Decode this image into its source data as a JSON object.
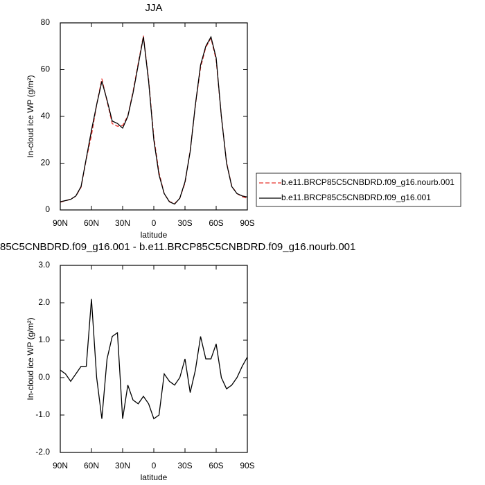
{
  "chart_data": [
    {
      "type": "line",
      "title": "JJA",
      "xlabel": "latitude",
      "ylabel": "In-cloud ice WP (g/m²)",
      "x": [
        90,
        85,
        80,
        75,
        70,
        65,
        60,
        55,
        50,
        45,
        40,
        35,
        30,
        25,
        20,
        15,
        10,
        5,
        0,
        -5,
        -10,
        -15,
        -20,
        -25,
        -30,
        -35,
        -40,
        -45,
        -50,
        -55,
        -60,
        -65,
        -70,
        -75,
        -80,
        -85,
        -90
      ],
      "series": [
        {
          "name": "b.e11.BRCP85C5CNBDRD.f09_g16.nourb.001",
          "color": "#e8302a",
          "dash": "dashed",
          "values": [
            3.3,
            3.9,
            4.6,
            5.9,
            9.7,
            21.7,
            31.9,
            45,
            56.1,
            46.5,
            36.9,
            35.8,
            36.1,
            40.2,
            50.6,
            62.7,
            74.5,
            55.7,
            31.1,
            16,
            6.9,
            3.6,
            2.7,
            5,
            11.5,
            25.4,
            44.8,
            60.9,
            69.5,
            73.5,
            64.1,
            40,
            20.3,
            10.2,
            7,
            5.7,
            4.95
          ]
        },
        {
          "name": "b.e11.BRCP85C5CNBDRD.f09_g16.001",
          "color": "#000000",
          "dash": "solid",
          "values": [
            3.5,
            4,
            4.5,
            6,
            10,
            22,
            34,
            45,
            55,
            47,
            38,
            37,
            35,
            40,
            50,
            62,
            74,
            55,
            30,
            15,
            7,
            3.5,
            2.5,
            5,
            12,
            25,
            45,
            62,
            70,
            74,
            65,
            40,
            20,
            10,
            7,
            6,
            5.5
          ]
        }
      ],
      "xlim": [
        90,
        -90
      ],
      "ylim": [
        0,
        80
      ],
      "xticks": [
        {
          "value": 90,
          "label": "90N"
        },
        {
          "value": 60,
          "label": "60N"
        },
        {
          "value": 30,
          "label": "30N"
        },
        0,
        {
          "value": -30,
          "label": "30S"
        },
        {
          "value": -60,
          "label": "60S"
        },
        {
          "value": -90,
          "label": "90S"
        }
      ],
      "yticks": [
        0,
        20,
        40,
        60,
        80
      ],
      "legend": "right"
    },
    {
      "type": "line",
      "title": "85C5CNBDRD.f09_g16.001 - b.e11.BRCP85C5CNBDRD.f09_g16.nourb.001",
      "xlabel": "latitude",
      "ylabel": "In-cloud ice WP (g/m²)",
      "x": [
        90,
        85,
        80,
        75,
        70,
        65,
        60,
        55,
        50,
        45,
        40,
        35,
        30,
        25,
        20,
        15,
        10,
        5,
        0,
        -5,
        -10,
        -15,
        -20,
        -25,
        -30,
        -35,
        -40,
        -45,
        -50,
        -55,
        -60,
        -65,
        -70,
        -75,
        -80,
        -85,
        -90
      ],
      "series": [
        {
          "color": "#000000",
          "dash": "solid",
          "values": [
            0.2,
            0.1,
            -0.1,
            0.1,
            0.3,
            0.3,
            2.1,
            0,
            -1.1,
            0.5,
            1.1,
            1.2,
            -1.1,
            -0.2,
            -0.6,
            -0.7,
            -0.5,
            -0.7,
            -1.1,
            -1,
            0.1,
            -0.1,
            -0.2,
            0,
            0.5,
            -0.4,
            0.2,
            1.1,
            0.5,
            0.5,
            0.9,
            0,
            -0.3,
            -0.2,
            0,
            0.3,
            0.55
          ]
        }
      ],
      "xlim": [
        90,
        -90
      ],
      "ylim": [
        -2,
        3
      ],
      "xticks": [
        {
          "value": 90,
          "label": "90N"
        },
        {
          "value": 60,
          "label": "60N"
        },
        {
          "value": 30,
          "label": "30N"
        },
        0,
        {
          "value": -30,
          "label": "30S"
        },
        {
          "value": -60,
          "label": "60S"
        },
        {
          "value": -90,
          "label": "90S"
        }
      ],
      "yticks": [
        {
          "value": -2,
          "label": "-2.0"
        },
        {
          "value": -1,
          "label": "-1.0"
        },
        {
          "value": 0,
          "label": "0.0"
        },
        {
          "value": 1,
          "label": "1.0"
        },
        {
          "value": 2,
          "label": "2.0"
        },
        {
          "value": 3,
          "label": "3.0"
        }
      ]
    }
  ]
}
